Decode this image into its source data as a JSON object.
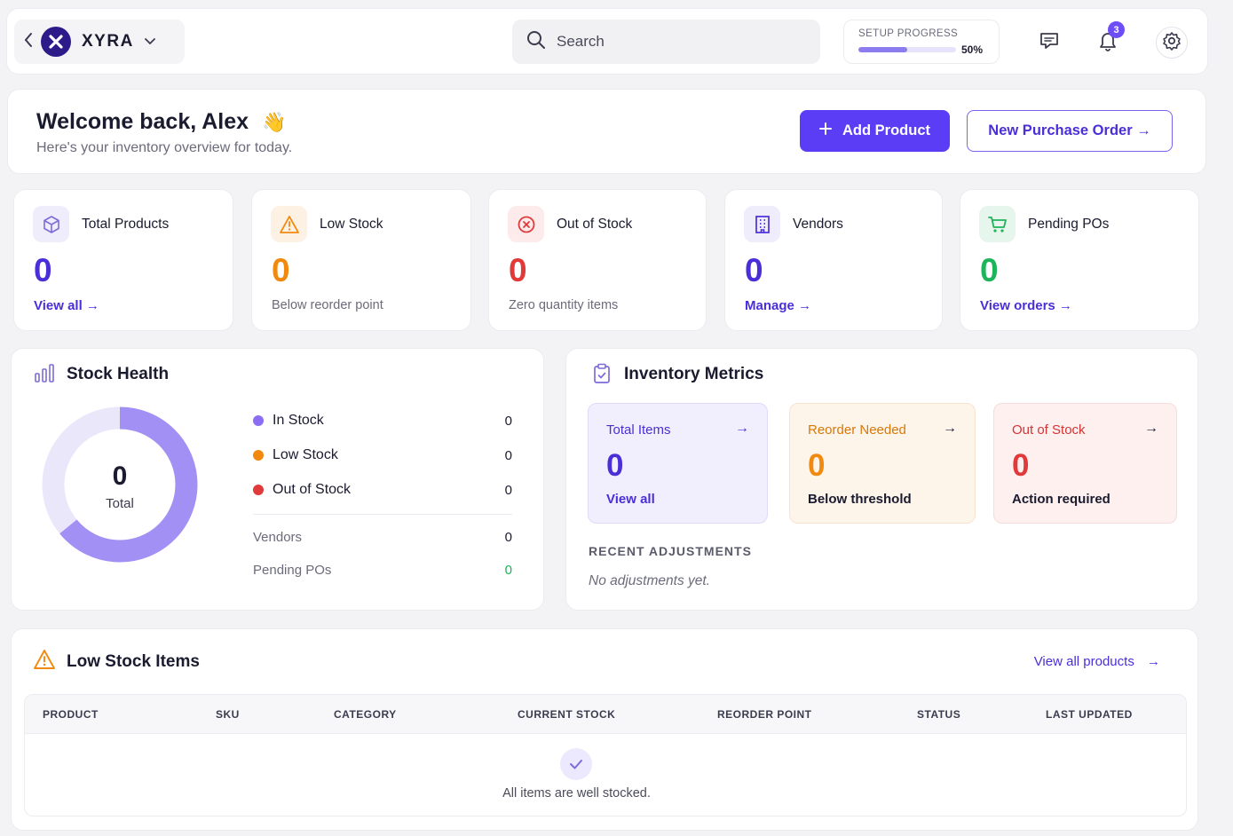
{
  "topbar": {
    "brand": "XYRA",
    "search_placeholder": "Search",
    "setup_label": "SETUP PROGRESS",
    "setup_value": "50%",
    "setup_progress": 0.5,
    "notifications_count": "3",
    "icons": [
      "back-chevron-icon",
      "xyra-logo",
      "chevron-down-icon",
      "search-icon",
      "message-icon",
      "bell-icon",
      "gear-icon"
    ]
  },
  "welcome": {
    "title": "Welcome back, Alex",
    "emoji": "👋",
    "subtitle": "Here's your inventory overview for today.",
    "add_product": "Add Product",
    "new_po": "New Purchase Order →"
  },
  "stats": [
    {
      "title": "Total Products",
      "value": "0",
      "sub": "View all →",
      "icon": "box-icon",
      "color": "#4a2fd8"
    },
    {
      "title": "Low Stock",
      "value": "0",
      "sub": "Below reorder point",
      "icon": "warning-icon",
      "color": "#f2890f"
    },
    {
      "title": "Out of Stock",
      "value": "0",
      "sub": "Zero quantity items",
      "icon": "x-circle-icon",
      "color": "#e03a3a"
    },
    {
      "title": "Vendors",
      "value": "0",
      "sub": "Manage →",
      "icon": "building-icon",
      "color": "#4a2fd8"
    },
    {
      "title": "Pending POs",
      "value": "0",
      "sub": "View orders →",
      "icon": "cart-icon",
      "color": "#1db45a"
    }
  ],
  "stock_health": {
    "title": "Stock Health",
    "total_value": "0",
    "total_label": "Total",
    "legend": [
      {
        "label": "In Stock",
        "value": "0",
        "color": "#8b6cf2"
      },
      {
        "label": "Low Stock",
        "value": "0",
        "color": "#f2890f"
      },
      {
        "label": "Out of Stock",
        "value": "0",
        "color": "#e03a3a"
      }
    ],
    "extra": [
      {
        "label": "Vendors",
        "value": "0"
      },
      {
        "label": "Pending POs",
        "value": "0"
      }
    ]
  },
  "metrics": {
    "title": "Inventory Metrics",
    "cards": [
      {
        "title": "Total Items",
        "arrow": "→",
        "value": "0",
        "sub": "View all"
      },
      {
        "title": "Reorder Needed",
        "arrow": "→",
        "value": "0",
        "sub": "Below threshold"
      },
      {
        "title": "Out of Stock",
        "arrow": "→",
        "value": "0",
        "sub": "Action required"
      }
    ],
    "recent_heading": "RECENT ADJUSTMENTS",
    "recent_empty": "No adjustments yet."
  },
  "low_stock": {
    "title": "Low Stock Items",
    "view_all": "View all products",
    "view_all_arrow": "→",
    "columns": [
      "PRODUCT",
      "SKU",
      "CATEGORY",
      "CURRENT STOCK",
      "REORDER POINT",
      "STATUS",
      "LAST UPDATED"
    ],
    "empty": "All items are well stocked."
  }
}
